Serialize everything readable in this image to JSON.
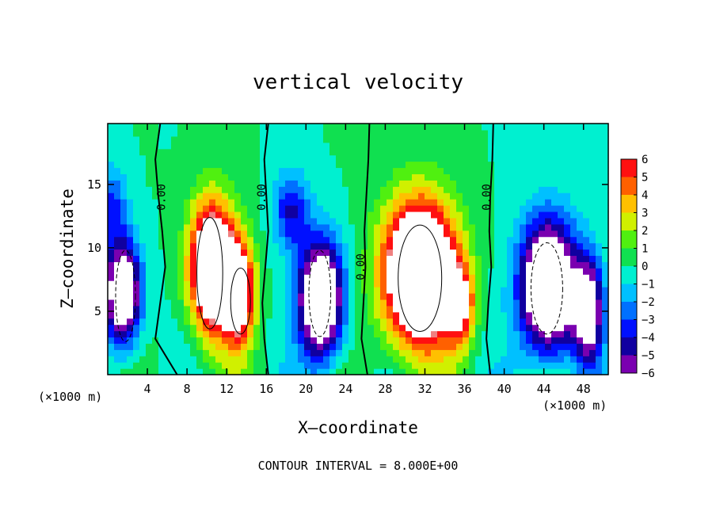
{
  "chart_data": {
    "type": "heatmap",
    "title": "vertical velocity",
    "xlabel": "X–coordinate",
    "ylabel": "Z–coordinate",
    "x_unit_label_left": "(×1000 m)",
    "x_unit_label_right": "(×1000 m)",
    "footer": "CONTOUR INTERVAL = 8.000E+00",
    "xlim": [
      0,
      50.5
    ],
    "ylim": [
      0,
      19.8
    ],
    "x_ticks": [
      4,
      8,
      12,
      16,
      20,
      24,
      28,
      32,
      36,
      40,
      44,
      48
    ],
    "y_ticks": [
      5,
      10,
      15
    ],
    "colorbar": {
      "ticks": [
        "6",
        "5",
        "4",
        "3",
        "2",
        "1",
        "0",
        "−1",
        "−2",
        "−3",
        "−4",
        "−5",
        "−6"
      ],
      "range": [
        -6,
        6
      ],
      "colors": [
        "#f0a0a0",
        "#ff2020",
        "#ff8000",
        "#f0f000",
        "#a0f000",
        "#20e020",
        "#00f0c0",
        "#00b0ff",
        "#0040ff",
        "#0000b0",
        "#8000c0"
      ]
    },
    "contour_labels": [
      {
        "text": "0.00",
        "x": 5.8,
        "z": 14.0
      },
      {
        "text": "0.00",
        "x": 15.9,
        "z": 14.0
      },
      {
        "text": "0.00",
        "x": 25.9,
        "z": 8.5
      },
      {
        "text": "0.00",
        "x": 38.6,
        "z": 14.0
      }
    ],
    "features": [
      {
        "kind": "updraft",
        "x": 10.5,
        "z": 8.5,
        "sx": 2.2,
        "sz": 5.0,
        "amp": 12
      },
      {
        "kind": "updraft",
        "x": 13.2,
        "z": 6.5,
        "sx": 1.6,
        "sz": 4.0,
        "amp": 9
      },
      {
        "kind": "updraft",
        "x": 31.5,
        "z": 8.0,
        "sx": 3.6,
        "sz": 5.5,
        "amp": 14
      },
      {
        "kind": "updraft",
        "x": 35.5,
        "z": 5.5,
        "sx": 1.4,
        "sz": 3.0,
        "amp": 6
      },
      {
        "kind": "downdraft",
        "x": 1.5,
        "z": 6.5,
        "sx": 1.8,
        "sz": 4.0,
        "amp": -10
      },
      {
        "kind": "downdraft",
        "x": 21.5,
        "z": 6.0,
        "sx": 2.2,
        "sz": 4.5,
        "amp": -11
      },
      {
        "kind": "downdraft",
        "x": 44.5,
        "z": 7.0,
        "sx": 2.8,
        "sz": 5.0,
        "amp": -12
      },
      {
        "kind": "downdraft",
        "x": 48.5,
        "z": 5.0,
        "sx": 1.4,
        "sz": 4.0,
        "amp": -8
      },
      {
        "kind": "weak",
        "x": 18.5,
        "z": 13.0,
        "sx": 1.8,
        "sz": 3.0,
        "amp": -4
      },
      {
        "kind": "weak",
        "x": 0.5,
        "z": 13.5,
        "sx": 1.5,
        "sz": 3.0,
        "amp": -3
      }
    ]
  }
}
